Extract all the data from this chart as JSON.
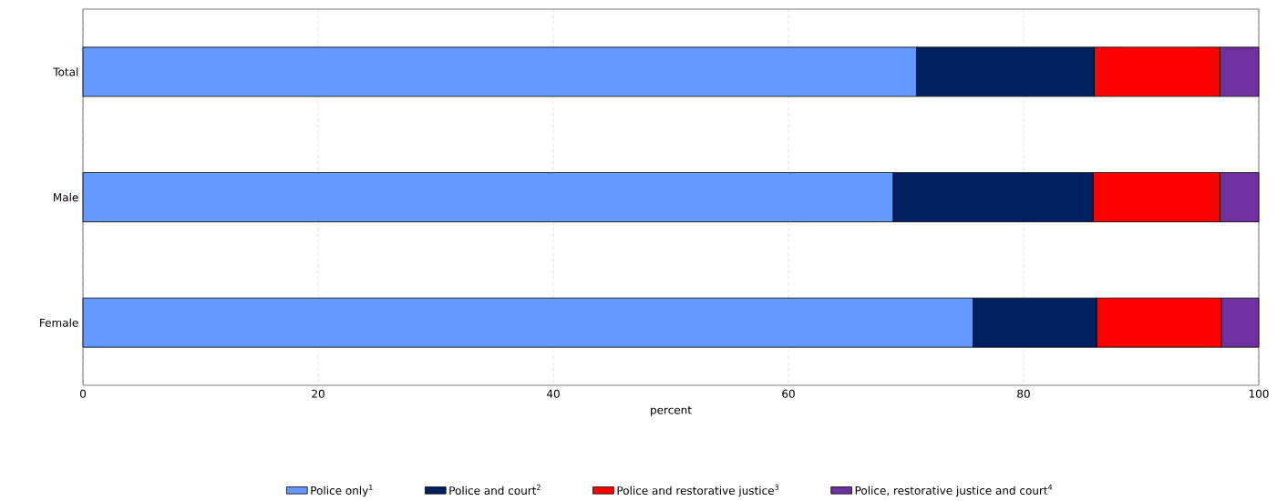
{
  "chart_data": {
    "type": "bar",
    "orientation": "horizontal",
    "stacked": true,
    "xlabel": "percent",
    "categories": [
      "Total",
      "Male",
      "Female"
    ],
    "series": [
      {
        "name": "Police only$^{1}$",
        "color": "#6699ff",
        "values": [
          70.9,
          68.9,
          75.7
        ]
      },
      {
        "name": "Police and court$^{2}$",
        "color": "#002060",
        "values": [
          15.1,
          17.0,
          10.5
        ]
      },
      {
        "name": "Police and restorative justice$^{3}$",
        "color": "#ff0000",
        "values": [
          10.7,
          10.8,
          10.6
        ]
      },
      {
        "name": "Police, restorative justice and court$^{4}$",
        "color": "#7030a0",
        "values": [
          3.3,
          3.3,
          3.2
        ]
      }
    ],
    "xlim": [
      0,
      100
    ],
    "xticks": [
      0,
      20,
      40,
      60,
      80,
      100
    ],
    "grid": "x",
    "legend": "bottom"
  }
}
